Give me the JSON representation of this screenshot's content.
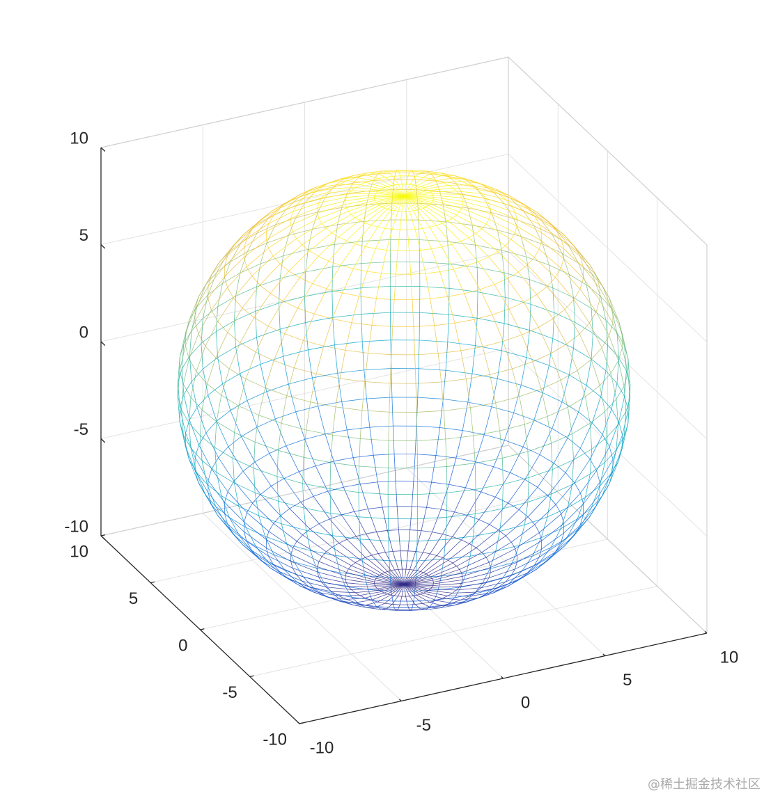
{
  "chart_data": {
    "type": "mesh-sphere",
    "radius": 10,
    "center": [
      0,
      0,
      0
    ],
    "mesh_resolution": 24,
    "xlim": [
      -10,
      10
    ],
    "ylim": [
      -10,
      10
    ],
    "zlim": [
      -10,
      10
    ],
    "xticks": [
      -10,
      -5,
      0,
      5,
      10
    ],
    "yticks": [
      -10,
      -5,
      0,
      5,
      10
    ],
    "zticks": [
      -10,
      -5,
      0,
      5,
      10
    ],
    "grid": true,
    "colormap": [
      "#352a87",
      "#0f5cdd",
      "#1481d6",
      "#06a4ca",
      "#2eb7a4",
      "#87bf77",
      "#d1bb59",
      "#fec832",
      "#f9fb0e"
    ]
  },
  "watermark": "@稀土掘金技术社区"
}
